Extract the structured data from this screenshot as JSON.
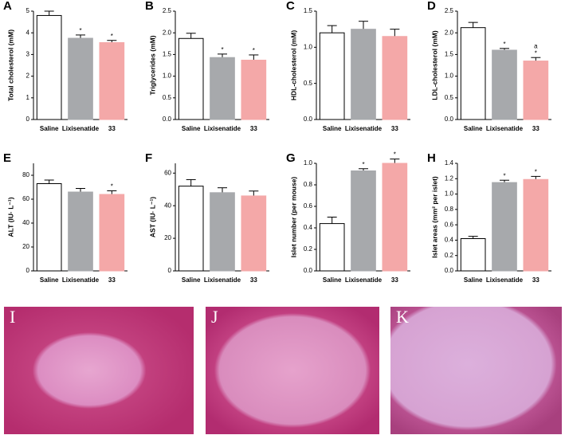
{
  "chart_data": [
    {
      "type": "bar",
      "panel": "A",
      "ylabel": "Total cholesterol (mM)",
      "categories": [
        "Saline",
        "Lixisenatide",
        "33"
      ],
      "values": [
        4.8,
        3.75,
        3.55
      ],
      "errors": [
        0.2,
        0.15,
        0.1
      ],
      "colors": [
        "#ffffff",
        "#a7a9ac",
        "#f4a8a8"
      ],
      "ylim": [
        0,
        5
      ],
      "yticks": [
        0,
        1,
        2,
        3,
        4,
        5
      ],
      "annotations": [
        [],
        [
          "*"
        ],
        [
          "*"
        ]
      ]
    },
    {
      "type": "bar",
      "panel": "B",
      "ylabel": "Triglycerides (mM)",
      "categories": [
        "Saline",
        "Lixisenatide",
        "33"
      ],
      "values": [
        1.87,
        1.43,
        1.37
      ],
      "errors": [
        0.12,
        0.08,
        0.12
      ],
      "colors": [
        "#ffffff",
        "#a7a9ac",
        "#f4a8a8"
      ],
      "ylim": [
        0,
        2.5
      ],
      "yticks": [
        {
          "value": 0,
          "label": "0.0"
        },
        0.5,
        {
          "value": 1,
          "label": "1.0"
        },
        1.5,
        {
          "value": 2,
          "label": "2.0"
        },
        2.5
      ],
      "annotations": [
        [],
        [
          "*"
        ],
        [
          "*"
        ]
      ]
    },
    {
      "type": "bar",
      "panel": "C",
      "ylabel": "HDL-cholesterol (mM)",
      "categories": [
        "Saline",
        "Lixisenatide",
        "33"
      ],
      "values": [
        1.2,
        1.25,
        1.15
      ],
      "errors": [
        0.1,
        0.11,
        0.1
      ],
      "colors": [
        "#ffffff",
        "#a7a9ac",
        "#f4a8a8"
      ],
      "ylim": [
        0,
        1.5
      ],
      "yticks": [
        {
          "value": 0,
          "label": "0.0"
        },
        0.5,
        {
          "value": 1,
          "label": "1.0"
        },
        1.5
      ],
      "annotations": [
        [],
        [],
        []
      ]
    },
    {
      "type": "bar",
      "panel": "D",
      "ylabel": "LDL-cholesterol (mM)",
      "categories": [
        "Saline",
        "Lixisenatide",
        "33"
      ],
      "values": [
        2.12,
        1.6,
        1.35
      ],
      "errors": [
        0.12,
        0.04,
        0.08
      ],
      "colors": [
        "#ffffff",
        "#a7a9ac",
        "#f4a8a8"
      ],
      "ylim": [
        0,
        2.5
      ],
      "yticks": [
        {
          "value": 0,
          "label": "0.0"
        },
        0.5,
        {
          "value": 1,
          "label": "1.0"
        },
        1.5,
        {
          "value": 2,
          "label": "2.0"
        },
        2.5
      ],
      "annotations": [
        [],
        [
          "*"
        ],
        [
          "*",
          "a"
        ]
      ]
    },
    {
      "type": "bar",
      "panel": "E",
      "ylabel": "ALT (IU· L⁻¹)",
      "categories": [
        "Saline",
        "Lixisenatide",
        "33"
      ],
      "values": [
        73,
        66,
        64
      ],
      "errors": [
        3,
        3,
        3
      ],
      "colors": [
        "#ffffff",
        "#a7a9ac",
        "#f4a8a8"
      ],
      "ylim": [
        0,
        90
      ],
      "yticks": [
        0,
        20,
        40,
        60,
        80
      ],
      "annotations": [
        [],
        [],
        [
          "*"
        ]
      ]
    },
    {
      "type": "bar",
      "panel": "F",
      "ylabel": "AST (IU· L⁻¹)",
      "categories": [
        "Saline",
        "Lixisenatide",
        "33"
      ],
      "values": [
        52,
        48,
        46
      ],
      "errors": [
        4,
        3,
        3
      ],
      "colors": [
        "#ffffff",
        "#a7a9ac",
        "#f4a8a8"
      ],
      "ylim": [
        0,
        66
      ],
      "yticks": [
        0,
        20,
        40,
        60
      ],
      "annotations": [
        [],
        [],
        []
      ]
    },
    {
      "type": "bar",
      "panel": "G",
      "ylabel": "Islet number (per mouse)",
      "categories": [
        "Saline",
        "Lixisenatide",
        "33"
      ],
      "values": [
        0.44,
        0.93,
        1.0
      ],
      "errors": [
        0.06,
        0.02,
        0.04
      ],
      "colors": [
        "#ffffff",
        "#a7a9ac",
        "#f4a8a8"
      ],
      "ylim": [
        0,
        1.0
      ],
      "yticks": [
        {
          "value": 0,
          "label": "0.0"
        },
        0.2,
        0.4,
        0.6,
        0.8,
        {
          "value": 1,
          "label": "1.0"
        }
      ],
      "annotations": [
        [],
        [
          "*"
        ],
        [
          "*"
        ]
      ]
    },
    {
      "type": "bar",
      "panel": "H",
      "ylabel": "Islet areas (mm² per islet)",
      "categories": [
        "Saline",
        "Lixisenatide",
        "33"
      ],
      "values": [
        0.42,
        1.15,
        1.19
      ],
      "errors": [
        0.03,
        0.03,
        0.04
      ],
      "colors": [
        "#ffffff",
        "#a7a9ac",
        "#f4a8a8"
      ],
      "ylim": [
        0,
        1.4
      ],
      "yticks": [
        {
          "value": 0,
          "label": "0.0"
        },
        0.2,
        0.4,
        0.6,
        0.8,
        {
          "value": 1,
          "label": "1.0"
        },
        1.2,
        1.4
      ],
      "annotations": [
        [],
        [
          "*"
        ],
        [
          "*"
        ]
      ]
    }
  ],
  "images": [
    {
      "label": "I"
    },
    {
      "label": "J"
    },
    {
      "label": "K"
    }
  ]
}
